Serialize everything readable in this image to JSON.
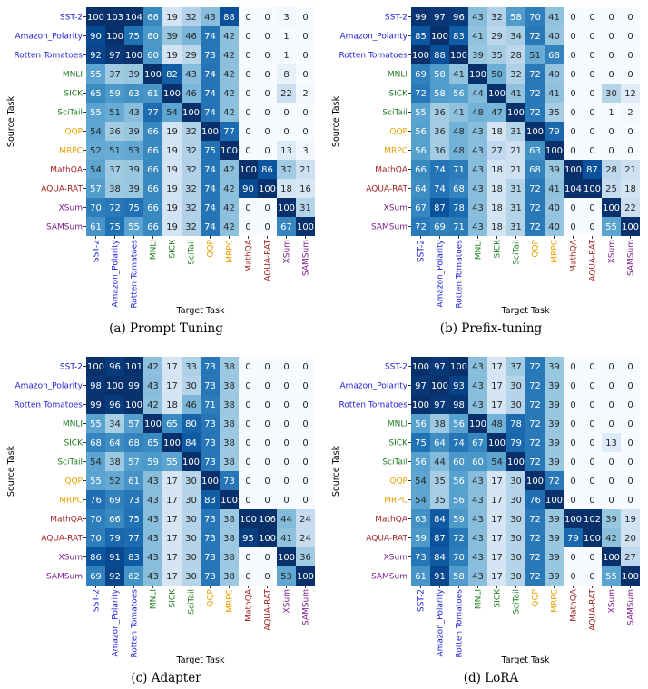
{
  "chart_data": [
    {
      "type": "heatmap",
      "caption": "(a) Prompt Tuning",
      "xlabel": "Target Task",
      "ylabel": "Source Task",
      "rows": [
        "SST-2",
        "Amazon_Polarity",
        "Rotten Tomatoes",
        "MNLI",
        "SICK",
        "SciTail",
        "QQP",
        "MRPC",
        "MathQA",
        "AQUA-RAT",
        "XSum",
        "SAMSum"
      ],
      "cols": [
        "SST-2",
        "Amazon_Polarity",
        "Rotten Tomatoes",
        "MNLI",
        "SICK",
        "SciTail",
        "QQP",
        "MRPC",
        "MathQA",
        "AQUA-RAT",
        "XSum",
        "SAMSum"
      ],
      "values": [
        [
          100,
          103,
          104,
          66,
          19,
          32,
          43,
          88,
          0,
          0,
          3,
          0
        ],
        [
          90,
          100,
          75,
          60,
          39,
          46,
          74,
          42,
          0,
          0,
          1,
          0
        ],
        [
          92,
          97,
          100,
          60,
          19,
          29,
          73,
          42,
          0,
          0,
          1,
          0
        ],
        [
          55,
          37,
          39,
          100,
          82,
          43,
          74,
          42,
          0,
          0,
          8,
          0
        ],
        [
          65,
          59,
          63,
          61,
          100,
          46,
          74,
          42,
          0,
          0,
          22,
          2
        ],
        [
          55,
          51,
          43,
          77,
          54,
          100,
          74,
          42,
          0,
          0,
          0,
          0
        ],
        [
          54,
          36,
          39,
          66,
          19,
          32,
          100,
          77,
          0,
          0,
          0,
          0
        ],
        [
          52,
          51,
          53,
          66,
          19,
          32,
          75,
          100,
          0,
          0,
          13,
          3
        ],
        [
          54,
          37,
          39,
          66,
          19,
          32,
          74,
          42,
          100,
          86,
          37,
          21
        ],
        [
          57,
          38,
          39,
          66,
          19,
          32,
          74,
          42,
          90,
          100,
          18,
          16
        ],
        [
          70,
          72,
          75,
          66,
          19,
          32,
          74,
          42,
          0,
          0,
          100,
          31
        ],
        [
          61,
          75,
          55,
          66,
          19,
          32,
          74,
          42,
          0,
          0,
          67,
          100
        ]
      ]
    },
    {
      "type": "heatmap",
      "caption": "(b) Prefix-tuning",
      "xlabel": "Target Task",
      "ylabel": "Source Task",
      "rows": [
        "SST-2",
        "Amazon_Polarity",
        "Rotten Tomatoes",
        "MNLI",
        "SICK",
        "SciTail",
        "QQP",
        "MRPC",
        "MathQA",
        "AQUA-RAT",
        "XSum",
        "SAMSum"
      ],
      "cols": [
        "SST-2",
        "Amazon_Polarity",
        "Rotten Tomatoes",
        "MNLI",
        "SICK",
        "SciTail",
        "QQP",
        "MRPC",
        "MathQA",
        "AQUA-RAT",
        "XSum",
        "SAMSum"
      ],
      "values": [
        [
          99,
          97,
          96,
          43,
          32,
          58,
          70,
          41,
          0,
          0,
          0,
          0
        ],
        [
          85,
          100,
          83,
          41,
          29,
          34,
          72,
          40,
          0,
          0,
          0,
          0
        ],
        [
          100,
          88,
          100,
          39,
          35,
          28,
          51,
          68,
          0,
          0,
          0,
          0
        ],
        [
          69,
          58,
          41,
          100,
          50,
          32,
          72,
          40,
          0,
          0,
          0,
          0
        ],
        [
          72,
          58,
          56,
          44,
          100,
          41,
          72,
          41,
          0,
          0,
          30,
          12
        ],
        [
          55,
          36,
          41,
          48,
          47,
          100,
          72,
          35,
          0,
          0,
          1,
          2
        ],
        [
          56,
          36,
          48,
          43,
          18,
          31,
          100,
          79,
          0,
          0,
          0,
          0
        ],
        [
          56,
          36,
          48,
          43,
          27,
          21,
          63,
          100,
          0,
          0,
          0,
          0
        ],
        [
          66,
          74,
          71,
          43,
          18,
          21,
          68,
          39,
          100,
          87,
          28,
          21
        ],
        [
          64,
          74,
          68,
          43,
          18,
          31,
          72,
          41,
          104,
          100,
          25,
          18
        ],
        [
          67,
          87,
          78,
          43,
          18,
          31,
          72,
          40,
          0,
          0,
          100,
          22
        ],
        [
          72,
          69,
          71,
          43,
          18,
          31,
          72,
          40,
          0,
          0,
          55,
          100
        ]
      ]
    },
    {
      "type": "heatmap",
      "caption": "(c) Adapter",
      "xlabel": "Target Task",
      "ylabel": "Source Task",
      "rows": [
        "SST-2",
        "Amazon_Polarity",
        "Rotten Tomatoes",
        "MNLI",
        "SICK",
        "SciTail",
        "QQP",
        "MRPC",
        "MathQA",
        "AQUA-RAT",
        "XSum",
        "SAMSum"
      ],
      "cols": [
        "SST-2",
        "Amazon_Polarity",
        "Rotten Tomatoes",
        "MNLI",
        "SICK",
        "SciTail",
        "QQP",
        "MRPC",
        "MathQA",
        "AQUA-RAT",
        "XSum",
        "SAMSum"
      ],
      "values": [
        [
          100,
          96,
          101,
          42,
          17,
          33,
          73,
          38,
          0,
          0,
          0,
          0
        ],
        [
          98,
          100,
          99,
          43,
          17,
          30,
          73,
          38,
          0,
          0,
          0,
          0
        ],
        [
          99,
          96,
          100,
          42,
          18,
          46,
          71,
          38,
          0,
          0,
          0,
          0
        ],
        [
          55,
          34,
          57,
          100,
          65,
          80,
          73,
          38,
          0,
          0,
          0,
          0
        ],
        [
          68,
          64,
          68,
          65,
          100,
          84,
          73,
          38,
          0,
          0,
          0,
          0
        ],
        [
          54,
          38,
          57,
          59,
          55,
          100,
          73,
          38,
          0,
          0,
          0,
          0
        ],
        [
          55,
          52,
          61,
          43,
          17,
          30,
          100,
          73,
          0,
          0,
          0,
          0
        ],
        [
          76,
          69,
          73,
          43,
          17,
          30,
          83,
          100,
          0,
          0,
          0,
          0
        ],
        [
          70,
          66,
          75,
          43,
          17,
          30,
          73,
          38,
          100,
          106,
          44,
          24
        ],
        [
          70,
          79,
          77,
          43,
          17,
          30,
          73,
          38,
          95,
          100,
          41,
          24
        ],
        [
          86,
          91,
          83,
          43,
          17,
          30,
          73,
          38,
          0,
          0,
          100,
          36
        ],
        [
          69,
          92,
          62,
          43,
          17,
          30,
          73,
          38,
          0,
          0,
          53,
          100
        ]
      ]
    },
    {
      "type": "heatmap",
      "caption": "(d) LoRA",
      "xlabel": "Target Task",
      "ylabel": "Source Task",
      "rows": [
        "SST-2",
        "Amazon_Polarity",
        "Rotten Tomatoes",
        "MNLI",
        "SICK",
        "SciTail",
        "QQP",
        "MRPC",
        "MathQA",
        "AQUA-RAT",
        "XSum",
        "SAMSum"
      ],
      "cols": [
        "SST-2",
        "Amazon_Polarity",
        "Rotten Tomatoes",
        "MNLI",
        "SICK",
        "SciTail",
        "QQP",
        "MRPC",
        "MathQA",
        "AQUA-RAT",
        "XSum",
        "SAMSum"
      ],
      "values": [
        [
          100,
          97,
          100,
          43,
          17,
          37,
          72,
          39,
          0,
          0,
          0,
          0
        ],
        [
          97,
          100,
          93,
          43,
          17,
          30,
          72,
          39,
          0,
          0,
          0,
          0
        ],
        [
          100,
          97,
          98,
          43,
          17,
          30,
          72,
          39,
          0,
          0,
          0,
          0
        ],
        [
          56,
          38,
          56,
          100,
          48,
          78,
          72,
          39,
          0,
          0,
          0,
          0
        ],
        [
          75,
          64,
          74,
          67,
          100,
          79,
          72,
          39,
          0,
          0,
          13,
          0
        ],
        [
          56,
          44,
          60,
          60,
          54,
          100,
          72,
          39,
          0,
          0,
          0,
          0
        ],
        [
          54,
          35,
          56,
          43,
          17,
          30,
          100,
          72,
          0,
          0,
          0,
          0
        ],
        [
          54,
          35,
          56,
          43,
          17,
          30,
          76,
          100,
          0,
          0,
          0,
          0
        ],
        [
          63,
          84,
          59,
          43,
          17,
          30,
          72,
          39,
          100,
          102,
          39,
          19
        ],
        [
          59,
          87,
          72,
          43,
          17,
          30,
          72,
          39,
          79,
          100,
          42,
          20
        ],
        [
          73,
          84,
          70,
          43,
          17,
          30,
          72,
          39,
          0,
          0,
          100,
          27
        ],
        [
          61,
          91,
          58,
          43,
          17,
          30,
          72,
          39,
          0,
          0,
          55,
          100
        ]
      ]
    }
  ],
  "colors": {
    "sentiment": "#1f1fd6",
    "nli": "#1f7a1f",
    "paraphrase": "#e8a000",
    "math": "#a02020",
    "summarization": "#7a1f8a",
    "cmap_low": "#f7fbff",
    "cmap_high": "#08306b"
  },
  "task_groups": {
    "SST-2": "sentiment",
    "Amazon_Polarity": "sentiment",
    "Rotten Tomatoes": "sentiment",
    "MNLI": "nli",
    "SICK": "nli",
    "SciTail": "nli",
    "QQP": "paraphrase",
    "MRPC": "paraphrase",
    "MathQA": "math",
    "AQUA-RAT": "math",
    "XSum": "summarization",
    "SAMSum": "summarization"
  }
}
